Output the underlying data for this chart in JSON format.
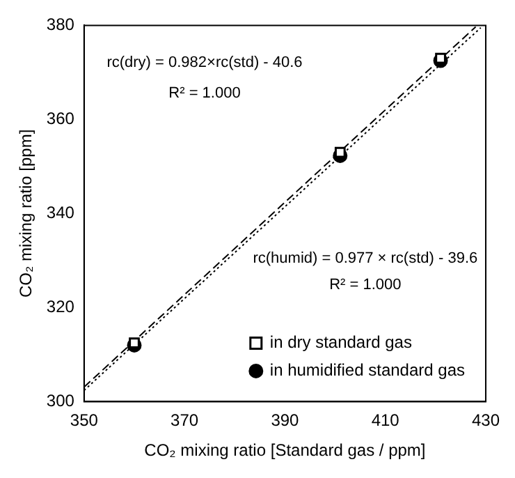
{
  "chart_data": {
    "type": "scatter",
    "xlabel": "CO₂ mixing ratio [Standard gas / ppm]",
    "ylabel": "CO₂ mixing ratio [ppm]",
    "xlim": [
      350,
      430
    ],
    "xticks": [
      350,
      370,
      390,
      410,
      430
    ],
    "ylim": [
      300,
      380
    ],
    "yticks": [
      300,
      320,
      340,
      360,
      380
    ],
    "grid": false,
    "legend": "bottom right",
    "annotations": [
      "rc(dry) = 0.982×rc(std) - 40.6",
      "R² = 1.000",
      "rc(humid) = 0.977 × rc(std) - 39.6",
      "R² = 1.000"
    ],
    "series": [
      {
        "name": "in dry standard gas",
        "marker": "square",
        "color": "#000000",
        "x": [
          360,
          401,
          421
        ],
        "values": [
          312.5,
          353,
          373
        ]
      },
      {
        "name": "in humidified standard gas",
        "marker": "circle",
        "color": "#000000",
        "x": [
          360,
          401,
          421
        ],
        "values": [
          312,
          352.3,
          372.5
        ]
      },
      {
        "type": "line",
        "marker": "none",
        "line_style": "dashed",
        "color": "#000000",
        "x": [
          350,
          428
        ],
        "values": [
          303.1,
          379.7
        ]
      },
      {
        "type": "line",
        "marker": "none",
        "line_style": "dotted",
        "color": "#000000",
        "x": [
          350,
          429
        ],
        "values": [
          302.4,
          379.5
        ]
      }
    ]
  }
}
